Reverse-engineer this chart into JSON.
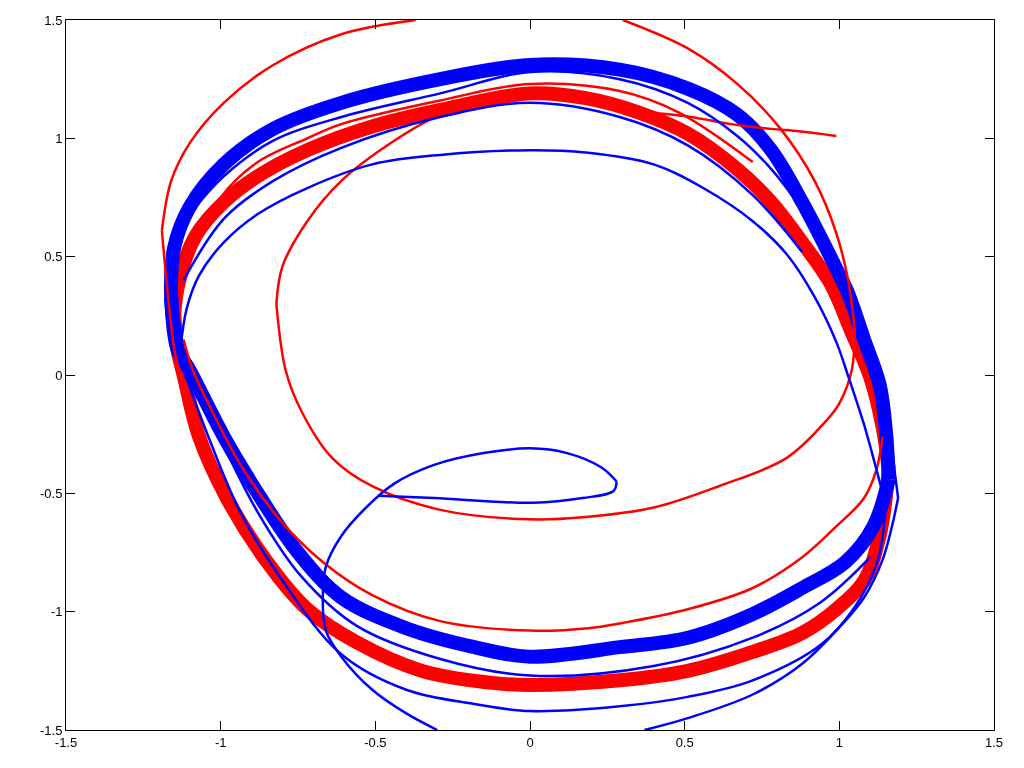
{
  "chart_data": {
    "type": "line",
    "xlim": [
      -1.5,
      1.5
    ],
    "ylim": [
      -1.5,
      1.5
    ],
    "xticks": [
      -1.5,
      -1,
      -0.5,
      0,
      0.5,
      1,
      1.5
    ],
    "yticks": [
      -1.5,
      -1,
      -0.5,
      0,
      0.5,
      1,
      1.5
    ],
    "grid": false,
    "marker": "none",
    "line_style": "solid",
    "series": [
      {
        "color": "#ff0000",
        "x": [
          -1.14,
          -1.15,
          -1.13,
          -1.08,
          -0.99,
          -0.88,
          -0.72,
          -0.51,
          -0.29,
          0.0,
          0.18,
          0.35,
          0.51,
          0.67,
          0.78,
          0.88,
          0.97,
          1.04,
          1.1,
          1.14,
          1.16
        ],
        "values": [
          0.11,
          0.25,
          0.42,
          0.59,
          0.73,
          0.84,
          0.95,
          1.05,
          1.12,
          1.19,
          1.17,
          1.11,
          1.02,
          0.87,
          0.73,
          0.56,
          0.39,
          0.18,
          -0.01,
          -0.22,
          -0.4
        ]
      },
      {
        "color": "#ff0000",
        "x": [
          -1.15,
          -1.14,
          -1.12,
          -1.07,
          -0.98,
          -0.85,
          -0.72,
          -0.56,
          -0.35,
          -0.13,
          0.0,
          0.29,
          0.51,
          0.72,
          0.88,
          0.99,
          1.08,
          1.13,
          1.16
        ],
        "values": [
          0.25,
          0.11,
          0.0,
          -0.26,
          -0.52,
          -0.79,
          -0.99,
          -1.13,
          -1.25,
          -1.3,
          -1.31,
          -1.29,
          -1.25,
          -1.17,
          -1.09,
          -0.99,
          -0.87,
          -0.68,
          -0.4
        ]
      },
      {
        "color": "#0000ff",
        "x": [
          -1.14,
          -1.16,
          -1.15,
          -1.1,
          -0.99,
          -0.83,
          -0.61,
          -0.29,
          0.0,
          0.29,
          0.51,
          0.67,
          0.78,
          0.88,
          0.99,
          1.03,
          1.08,
          1.13,
          1.15,
          1.16
        ],
        "values": [
          0.11,
          0.33,
          0.54,
          0.71,
          0.89,
          1.04,
          1.15,
          1.25,
          1.31,
          1.29,
          1.21,
          1.1,
          0.95,
          0.73,
          0.45,
          0.34,
          0.15,
          -0.04,
          -0.23,
          -0.44
        ]
      },
      {
        "color": "#0000ff",
        "x": [
          -1.16,
          -1.14,
          -1.1,
          -0.99,
          -0.88,
          -0.75,
          -0.61,
          -0.4,
          -0.18,
          0.0,
          0.29,
          0.51,
          0.72,
          0.88,
          1.02,
          1.11,
          1.16
        ],
        "values": [
          0.33,
          0.11,
          0.02,
          -0.26,
          -0.5,
          -0.75,
          -0.94,
          -1.07,
          -1.15,
          -1.19,
          -1.15,
          -1.11,
          -1.01,
          -0.9,
          -0.79,
          -0.64,
          -0.44
        ]
      },
      {
        "color": "#ff0000",
        "x": [
          0.29,
          0.39,
          0.52,
          0.65,
          0.78,
          0.87,
          0.99
        ],
        "values": [
          1.13,
          1.11,
          1.09,
          1.06,
          1.04,
          1.03,
          1.01
        ]
      },
      {
        "color": "#ff0000",
        "x": [
          0.3,
          0.51,
          0.67,
          0.81,
          0.92,
          0.99,
          1.03,
          1.05
        ],
        "values": [
          1.5,
          1.38,
          1.23,
          1.04,
          0.82,
          0.6,
          0.39,
          0.19
        ]
      },
      {
        "color": "#ff0000",
        "x": [
          -0.82,
          -0.79,
          -0.74,
          -0.64,
          -0.51,
          -0.29,
          0.0,
          0.18,
          0.4,
          0.61,
          0.83,
          0.96,
          1.0,
          1.04,
          1.05
        ],
        "values": [
          0.3,
          0.02,
          -0.15,
          -0.35,
          -0.47,
          -0.57,
          -0.61,
          -0.6,
          -0.56,
          -0.47,
          -0.35,
          -0.19,
          -0.12,
          0.02,
          0.19
        ]
      },
      {
        "color": "#ff0000",
        "x": [
          -0.82,
          -0.8,
          -0.72,
          -0.61,
          -0.45,
          -0.29,
          -0.09
        ],
        "values": [
          0.3,
          0.46,
          0.65,
          0.82,
          0.98,
          1.1,
          1.18
        ]
      },
      {
        "color": "#ff0000",
        "x": [
          -1.19,
          -1.16,
          -1.1,
          -0.99,
          -0.83,
          -0.61,
          -0.37
        ],
        "values": [
          0.61,
          0.82,
          0.98,
          1.15,
          1.31,
          1.44,
          1.5
        ]
      },
      {
        "color": "#ff0000",
        "x": [
          -1.19,
          -1.17,
          -1.15,
          -1.13,
          -1.1
        ],
        "values": [
          0.61,
          0.33,
          0.11,
          0.0,
          -0.15
        ]
      },
      {
        "color": "#ff0000",
        "x": [
          -1.12,
          -1.09,
          -1.04,
          -0.94,
          -0.81,
          -0.67,
          -0.51,
          -0.29,
          0.0,
          0.19,
          0.29,
          0.51,
          0.72,
          0.88,
          0.99,
          1.08,
          1.12,
          1.14
        ],
        "values": [
          0.15,
          0.02,
          -0.12,
          -0.37,
          -0.61,
          -0.79,
          -0.93,
          -1.04,
          -1.08,
          -1.07,
          -1.05,
          -0.99,
          -0.9,
          -0.77,
          -0.64,
          -0.52,
          -0.4,
          -0.26
        ]
      },
      {
        "color": "#ff0000",
        "x": [
          -1.07,
          -1.0,
          -0.88,
          -0.72,
          -0.61,
          -0.29,
          0.0,
          0.29,
          0.48,
          0.72
        ],
        "values": [
          0.57,
          0.75,
          0.9,
          1.0,
          1.06,
          1.16,
          1.23,
          1.2,
          1.11,
          0.9
        ]
      },
      {
        "color": "#0000ff",
        "x": [
          -0.49,
          -0.31,
          0.01,
          0.17,
          0.27,
          0.28
        ],
        "values": [
          -0.51,
          -0.52,
          -0.54,
          -0.52,
          -0.49,
          -0.45
        ]
      },
      {
        "color": "#0000ff",
        "x": [
          -0.67,
          -0.66,
          -0.61,
          -0.53,
          -0.44,
          -0.31,
          -0.15,
          0.0,
          0.12,
          0.23,
          0.28
        ],
        "values": [
          -0.95,
          -0.81,
          -0.68,
          -0.56,
          -0.46,
          -0.38,
          -0.33,
          -0.31,
          -0.33,
          -0.39,
          -0.45
        ]
      },
      {
        "color": "#0000ff",
        "x": [
          -0.67,
          -0.66,
          -0.61,
          -0.51,
          -0.4,
          -0.3
        ],
        "values": [
          -0.95,
          -1.08,
          -1.19,
          -1.33,
          -1.43,
          -1.5
        ]
      },
      {
        "color": "#0000ff",
        "x": [
          -1.13,
          -1.11,
          -1.07,
          -0.99,
          -0.88,
          -0.72,
          -0.51,
          -0.29,
          0.0,
          0.18,
          0.4,
          0.56,
          0.72,
          0.83,
          0.92,
          0.99,
          1.03,
          1.08,
          1.12,
          1.15
        ],
        "values": [
          0.11,
          0.28,
          0.42,
          0.56,
          0.68,
          0.79,
          0.89,
          0.93,
          0.95,
          0.94,
          0.89,
          0.79,
          0.65,
          0.51,
          0.33,
          0.14,
          -0.01,
          -0.21,
          -0.4,
          -0.55
        ]
      },
      {
        "color": "#0000ff",
        "x": [
          -1.12,
          -1.04,
          -0.94,
          -0.81,
          -0.61,
          -0.4,
          -0.18,
          0.0,
          0.29,
          0.51,
          0.72,
          0.94,
          1.05,
          1.12,
          1.14,
          1.15
        ],
        "values": [
          0.02,
          -0.26,
          -0.57,
          -0.85,
          -1.18,
          -1.33,
          -1.39,
          -1.42,
          -1.4,
          -1.36,
          -1.29,
          -1.14,
          -0.98,
          -0.8,
          -0.68,
          -0.55
        ]
      },
      {
        "color": "#0000ff",
        "x": [
          0.37,
          0.51,
          0.72,
          0.88,
          0.99,
          1.08,
          1.14,
          1.17,
          1.19
        ],
        "values": [
          -1.5,
          -1.45,
          -1.35,
          -1.22,
          -1.08,
          -0.94,
          -0.78,
          -0.64,
          -0.52
        ]
      },
      {
        "color": "#0000ff",
        "x": [
          1.15,
          1.17,
          1.19
        ],
        "values": [
          -0.19,
          -0.33,
          -0.52
        ]
      },
      {
        "color": "#0000ff",
        "x": [
          -1.1,
          -0.99,
          -0.83,
          -0.61,
          -0.29,
          0.0,
          0.29,
          0.51,
          0.67,
          0.78,
          0.88
        ],
        "values": [
          0.68,
          0.84,
          0.99,
          1.09,
          1.19,
          1.28,
          1.25,
          1.15,
          1.01,
          0.87,
          0.7
        ]
      },
      {
        "color": "#0000ff",
        "x": [
          -1.12,
          -0.99,
          -0.83,
          -0.61,
          -0.29,
          0.0,
          0.29,
          0.51,
          0.72,
          0.88
        ],
        "values": [
          0.4,
          0.66,
          0.82,
          0.96,
          1.09,
          1.15,
          1.09,
          0.97,
          0.76,
          0.52
        ]
      },
      {
        "color": "#0000ff",
        "x": [
          -1.0,
          -0.88,
          -0.74,
          -0.56,
          -0.29,
          0.0,
          0.4,
          0.72,
          0.94,
          1.1
        ],
        "values": [
          -0.27,
          -0.58,
          -0.85,
          -1.06,
          -1.2,
          -1.27,
          -1.23,
          -1.11,
          -0.96,
          -0.77
        ]
      }
    ]
  }
}
